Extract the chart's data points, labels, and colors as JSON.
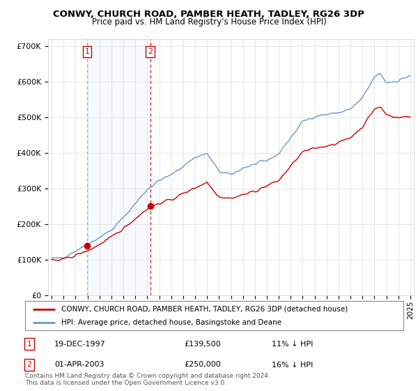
{
  "title": "CONWY, CHURCH ROAD, PAMBER HEATH, TADLEY, RG26 3DP",
  "subtitle": "Price paid vs. HM Land Registry's House Price Index (HPI)",
  "ylim": [
    0,
    720000
  ],
  "yticks": [
    0,
    100000,
    200000,
    300000,
    400000,
    500000,
    600000,
    700000
  ],
  "ytick_labels": [
    "£0",
    "£100K",
    "£200K",
    "£300K",
    "£400K",
    "£500K",
    "£600K",
    "£700K"
  ],
  "sale1_x": 1997.97,
  "sale1_y": 139500,
  "sale1_label": "1",
  "sale2_x": 2003.25,
  "sale2_y": 250000,
  "sale2_label": "2",
  "legend_line1": "CONWY, CHURCH ROAD, PAMBER HEATH, TADLEY, RG26 3DP (detached house)",
  "legend_line2": "HPI: Average price, detached house, Basingstoke and Deane",
  "table_row1": [
    "1",
    "19-DEC-1997",
    "£139,500",
    "11% ↓ HPI"
  ],
  "table_row2": [
    "2",
    "01-APR-2003",
    "£250,000",
    "16% ↓ HPI"
  ],
  "footer": "Contains HM Land Registry data © Crown copyright and database right 2024.\nThis data is licensed under the Open Government Licence v3.0.",
  "hpi_color": "#6699cc",
  "price_color": "#cc0000",
  "marker_color": "#cc0000",
  "vline_color": "#aaaaaa",
  "vline2_color": "#cc0000",
  "shade_color": "#ddeeff",
  "background_color": "#ffffff",
  "grid_color": "#dddddd",
  "xlim_left": 1994.7,
  "xlim_right": 2025.3
}
